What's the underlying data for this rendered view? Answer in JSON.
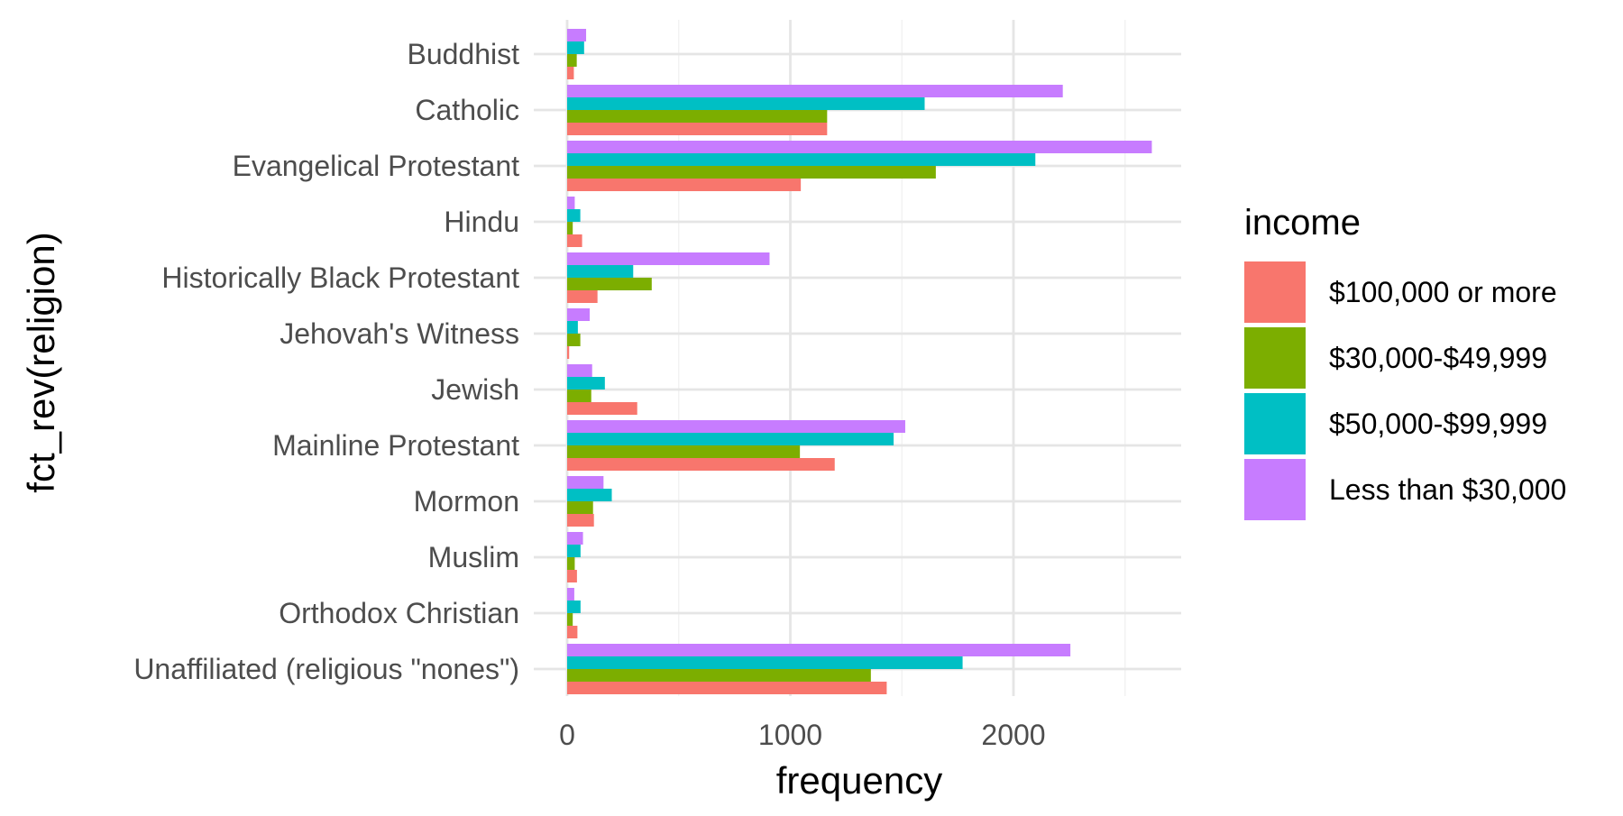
{
  "colors": {
    "background": "#ffffff",
    "grid_major": "#e5e5e5",
    "grid_minor": "#f2f2f2",
    "tick_text": "#4d4d4d",
    "title_text": "#000000"
  },
  "chart_data": {
    "type": "bar",
    "orientation": "horizontal",
    "xlabel": "frequency",
    "ylabel": "fct_rev(religion)",
    "xlim": [
      0,
      2750
    ],
    "xticks": [
      0,
      1000,
      2000
    ],
    "xtick_labels": [
      "0",
      "1000",
      "2000"
    ],
    "grid": true,
    "legend": {
      "title": "income",
      "position": "right"
    },
    "categories": [
      "Buddhist",
      "Catholic",
      "Evangelical Protestant",
      "Hindu",
      "Historically Black Protestant",
      "Jehovah's Witness",
      "Jewish",
      "Mainline Protestant",
      "Mormon",
      "Muslim",
      "Orthodox Christian",
      "Unaffiliated (religious \"nones\")"
    ],
    "series": [
      {
        "name": "$100,000 or more",
        "color": "#F8766D",
        "values": [
          30,
          1165,
          1047,
          67,
          136,
          9,
          314,
          1199,
          120,
          44,
          46,
          1432
        ]
      },
      {
        "name": "$30,000-$49,999",
        "color": "#7CAE00",
        "values": [
          43,
          1165,
          1652,
          25,
          379,
          59,
          108,
          1043,
          116,
          34,
          25,
          1361
        ]
      },
      {
        "name": "$50,000-$99,999",
        "color": "#00BFC4",
        "values": [
          76,
          1602,
          2098,
          59,
          296,
          48,
          169,
          1463,
          200,
          60,
          60,
          1772
        ]
      },
      {
        "name": "Less than $30,000",
        "color": "#C77CFF",
        "values": [
          85,
          2221,
          2620,
          34,
          907,
          101,
          112,
          1515,
          163,
          71,
          32,
          2255
        ]
      }
    ]
  }
}
